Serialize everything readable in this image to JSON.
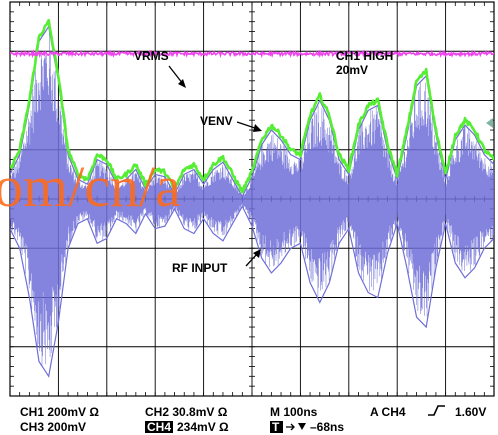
{
  "chart_data": {
    "type": "line",
    "title": "",
    "xlabel": "",
    "ylabel": "",
    "grid": true,
    "divisions": {
      "x": 10,
      "y": 8
    },
    "xlim": [
      -5,
      5
    ],
    "ylim": [
      -4,
      4
    ],
    "series": [
      {
        "name": "VRMS",
        "color": "#ee44ee",
        "level_div": 2.95
      },
      {
        "name": "VENV",
        "color": "#55ee33",
        "x": [
          -5.0,
          -4.8,
          -4.6,
          -4.4,
          -4.2,
          -4.0,
          -3.8,
          -3.6,
          -3.4,
          -3.2,
          -3.0,
          -2.8,
          -2.6,
          -2.4,
          -2.2,
          -2.0,
          -1.8,
          -1.6,
          -1.4,
          -1.2,
          -1.0,
          -0.8,
          -0.6,
          -0.4,
          -0.2,
          0.0,
          0.2,
          0.4,
          0.6,
          0.8,
          1.0,
          1.2,
          1.4,
          1.6,
          1.8,
          2.0,
          2.2,
          2.4,
          2.6,
          2.8,
          3.0,
          3.2,
          3.4,
          3.6,
          3.8,
          4.0,
          4.2,
          4.4,
          4.6,
          4.8,
          5.0
        ],
        "values": [
          0.6,
          1.0,
          2.0,
          3.3,
          3.6,
          2.5,
          1.0,
          0.5,
          0.4,
          0.9,
          0.8,
          0.4,
          0.5,
          0.7,
          0.3,
          0.6,
          0.55,
          0.2,
          0.6,
          0.7,
          0.4,
          0.7,
          0.85,
          0.5,
          0.15,
          0.55,
          1.2,
          1.5,
          1.3,
          1.0,
          0.9,
          1.7,
          2.1,
          1.7,
          0.9,
          0.6,
          1.5,
          1.9,
          2.0,
          1.1,
          0.5,
          1.4,
          2.4,
          2.6,
          1.4,
          0.5,
          1.3,
          1.6,
          1.4,
          1.0,
          0.8
        ]
      },
      {
        "name": "RF INPUT",
        "color": "#6f6fd8",
        "x": [
          -5.0,
          -4.8,
          -4.6,
          -4.4,
          -4.2,
          -4.0,
          -3.8,
          -3.6,
          -3.4,
          -3.2,
          -3.0,
          -2.8,
          -2.6,
          -2.4,
          -2.2,
          -2.0,
          -1.8,
          -1.6,
          -1.4,
          -1.2,
          -1.0,
          -0.8,
          -0.6,
          -0.4,
          -0.2,
          0.0,
          0.2,
          0.4,
          0.6,
          0.8,
          1.0,
          1.2,
          1.4,
          1.6,
          1.8,
          2.0,
          2.2,
          2.4,
          2.6,
          2.8,
          3.0,
          3.2,
          3.4,
          3.6,
          3.8,
          4.0,
          4.2,
          4.4,
          4.6,
          4.8,
          5.0
        ],
        "upper": [
          0.5,
          0.9,
          1.9,
          3.2,
          3.5,
          2.4,
          0.9,
          0.4,
          0.3,
          0.8,
          0.7,
          0.3,
          0.4,
          0.6,
          0.2,
          0.5,
          0.45,
          0.1,
          0.5,
          0.6,
          0.3,
          0.6,
          0.75,
          0.4,
          0.05,
          0.45,
          1.1,
          1.4,
          1.2,
          0.9,
          0.8,
          1.6,
          2.0,
          1.6,
          0.8,
          0.5,
          1.4,
          1.8,
          1.9,
          1.0,
          0.4,
          1.3,
          2.3,
          2.5,
          1.3,
          0.4,
          1.2,
          1.5,
          1.3,
          0.9,
          0.7
        ],
        "lower": [
          -0.6,
          -1.0,
          -2.0,
          -3.3,
          -3.6,
          -2.5,
          -1.0,
          -0.5,
          -0.4,
          -0.9,
          -0.8,
          -0.4,
          -0.5,
          -0.7,
          -0.3,
          -0.6,
          -0.55,
          -0.2,
          -0.6,
          -0.7,
          -0.4,
          -0.7,
          -0.85,
          -0.5,
          -0.15,
          -0.55,
          -1.2,
          -1.5,
          -1.3,
          -1.0,
          -0.9,
          -1.7,
          -2.1,
          -1.7,
          -0.9,
          -0.6,
          -1.5,
          -1.9,
          -2.0,
          -1.1,
          -0.5,
          -1.4,
          -2.4,
          -2.6,
          -1.4,
          -0.5,
          -1.3,
          -1.6,
          -1.4,
          -1.0,
          -0.8
        ]
      }
    ],
    "annotations": {
      "vrms": "VRMS",
      "venv": "VENV",
      "rf_input": "RF INPUT",
      "ch1_high": "CH1 HIGH",
      "ch1_high_value": "20mV"
    }
  },
  "status_bar": {
    "ch1": "CH1  200mV Ω",
    "ch2": "CH2  30.8mV Ω",
    "timebase": "M 100ns",
    "trigger_source": "A CH4",
    "trigger_level": "1.60V",
    "ch3": "CH3  200mV",
    "ch4_tag": "CH4",
    "ch4_value": "234mV Ω",
    "trigger_tag": "T",
    "trigger_position": "–68ns"
  },
  "watermark": "om/cn/a"
}
